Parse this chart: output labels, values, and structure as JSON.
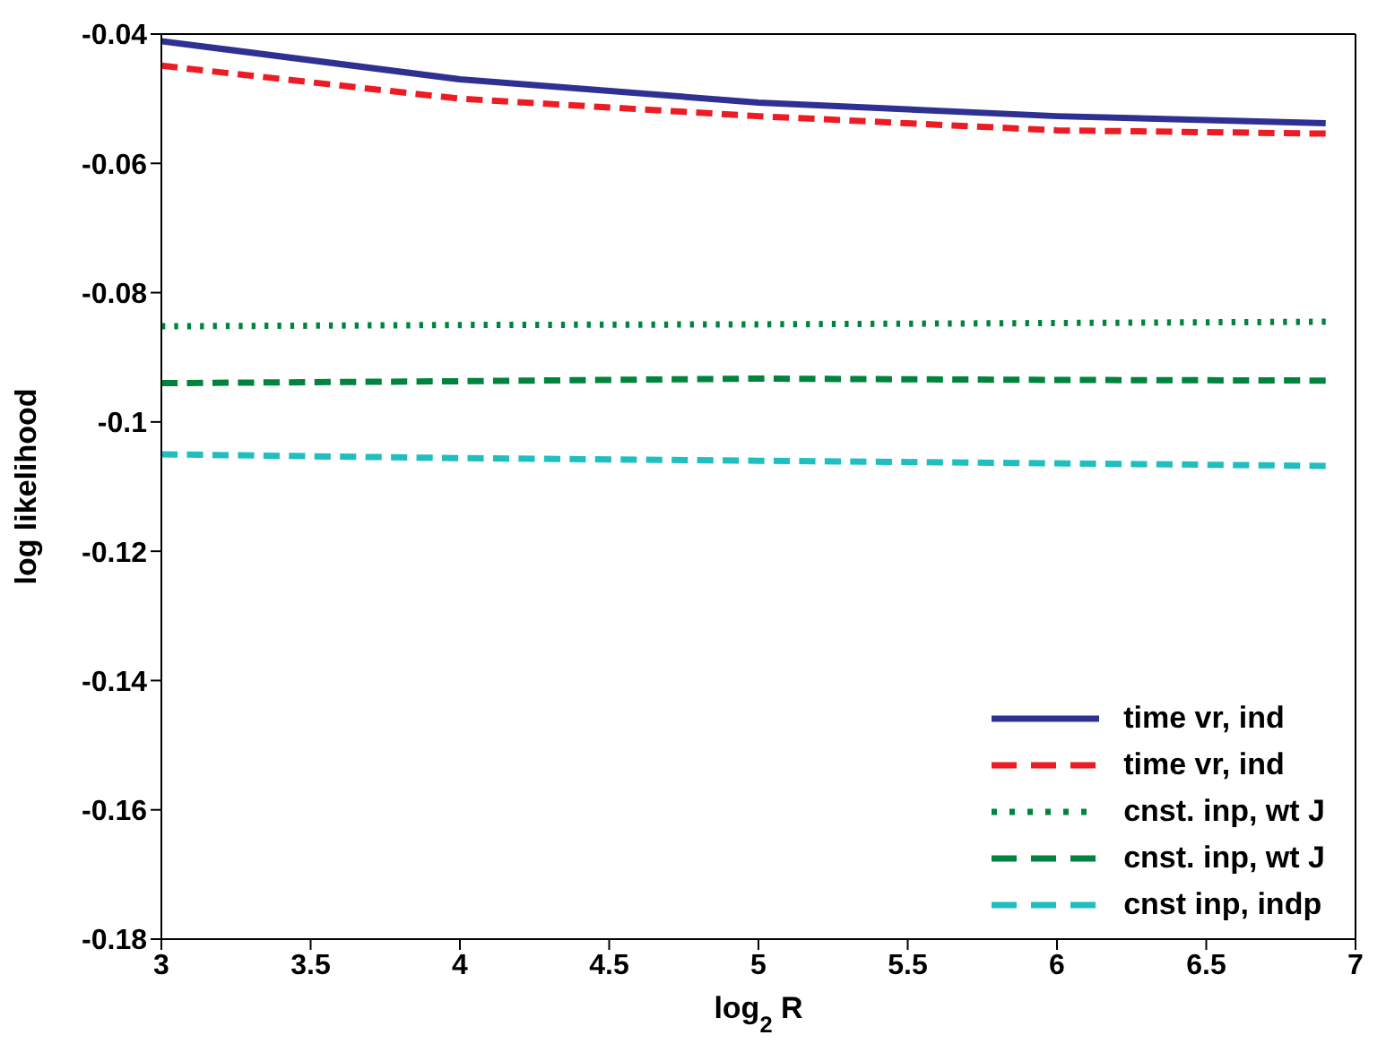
{
  "chart_data": {
    "type": "line",
    "xlabel": "log$_{2}$ R",
    "ylabel": "log likelihood",
    "x": [
      3,
      4,
      5,
      6,
      6.9
    ],
    "series": [
      {
        "name": "time vr, ind",
        "color": "#2e3192",
        "values": [
          -0.0411,
          -0.047,
          -0.0506,
          -0.0527,
          -0.0538
        ],
        "line_style": "solid"
      },
      {
        "name": "time vr, ind",
        "color": "#ed1c24",
        "values": [
          -0.0449,
          -0.05,
          -0.0527,
          -0.0549,
          -0.0554
        ],
        "line_style": "dashed"
      },
      {
        "name": "cnst. inp, wt J",
        "color": "#00843d",
        "values": [
          -0.0852,
          -0.085,
          -0.0849,
          -0.0847,
          -0.0845
        ],
        "line_style": "dotted"
      },
      {
        "name": "cnst. inp, wt J",
        "color": "#00843d",
        "values": [
          -0.094,
          -0.0937,
          -0.0933,
          -0.0935,
          -0.0936
        ],
        "line_style": "dashed"
      },
      {
        "name": "cnst inp, indp",
        "color": "#1fbfbf",
        "values": [
          -0.105,
          -0.1056,
          -0.106,
          -0.1064,
          -0.1068
        ],
        "line_style": "dashed"
      }
    ],
    "xlim": [
      3,
      7
    ],
    "xticks": [
      3,
      3.5,
      4,
      4.5,
      5,
      5.5,
      6,
      6.5,
      7
    ],
    "ylim": [
      -0.18,
      -0.04
    ],
    "yticks": [
      -0.18,
      -0.16,
      -0.14,
      -0.12,
      -0.1,
      -0.08,
      -0.06,
      -0.04
    ],
    "grid": false,
    "legend": "bottom right",
    "marker": "none"
  }
}
